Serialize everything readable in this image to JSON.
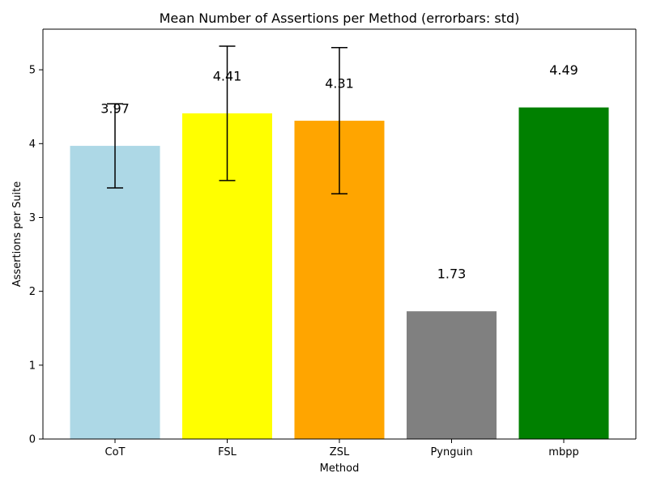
{
  "chart_data": {
    "type": "bar",
    "title": "Mean Number of Assertions per Method (errorbars: std)",
    "xlabel": "Method",
    "ylabel": "Assertions per Suite",
    "categories": [
      "CoT",
      "FSL",
      "ZSL",
      "Pynguin",
      "mbpp"
    ],
    "values": [
      3.97,
      4.41,
      4.31,
      1.73,
      4.49
    ],
    "value_labels": [
      "3.97",
      "4.41",
      "4.31",
      "1.73",
      "4.49"
    ],
    "error_std": [
      0.57,
      0.91,
      0.99,
      null,
      null
    ],
    "colors": [
      "#add8e6",
      "#ffff00",
      "#ffa500",
      "#808080",
      "#008000"
    ],
    "ylim": [
      0,
      5.55
    ],
    "yticks": [
      0,
      1,
      2,
      3,
      4,
      5
    ],
    "ytick_labels": [
      "0",
      "1",
      "2",
      "3",
      "4",
      "5"
    ],
    "grid": false,
    "legend": "none"
  }
}
